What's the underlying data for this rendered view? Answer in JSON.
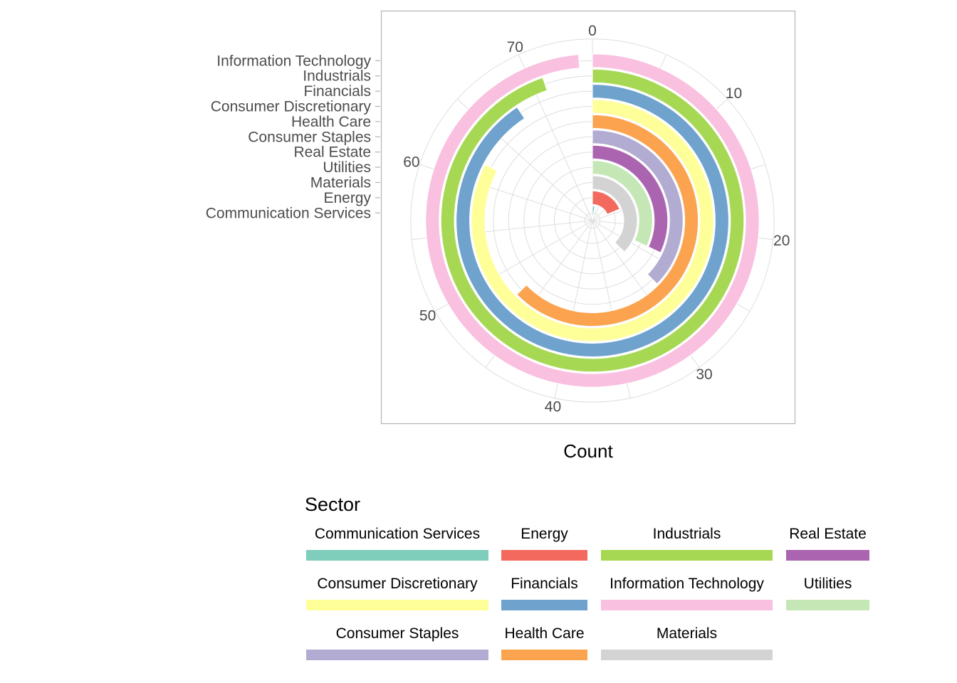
{
  "chart_data": {
    "type": "radial-bar",
    "xlabel": "Count",
    "theta_range": [
      0,
      75
    ],
    "theta_ticks": [
      0,
      10,
      20,
      30,
      40,
      50,
      60,
      70
    ],
    "categories": [
      "Communication Services",
      "Energy",
      "Materials",
      "Utilities",
      "Real Estate",
      "Consumer Staples",
      "Health Care",
      "Consumer Discretionary",
      "Financials",
      "Industrials",
      "Information Technology"
    ],
    "values": [
      2,
      14,
      28,
      24,
      24,
      28,
      47,
      62,
      68,
      71,
      74
    ],
    "legend": {
      "title": "Sector",
      "columns": [
        [
          "Communication Services",
          "Consumer Discretionary",
          "Consumer Staples"
        ],
        [
          "Energy",
          "Financials",
          "Health Care"
        ],
        [
          "Industrials",
          "Information Technology",
          "Materials"
        ],
        [
          "Real Estate",
          "Utilities"
        ]
      ]
    },
    "colors": {
      "Communication Services": "#7fcdbb",
      "Consumer Discretionary": "#ffff99",
      "Consumer Staples": "#b2abd2",
      "Energy": "#f4695e",
      "Financials": "#6fa3cd",
      "Health Care": "#fba34f",
      "Industrials": "#a6d854",
      "Information Technology": "#f9c0df",
      "Materials": "#d3d3d3",
      "Real Estate": "#ab65b0",
      "Utilities": "#c5e7b6"
    }
  }
}
